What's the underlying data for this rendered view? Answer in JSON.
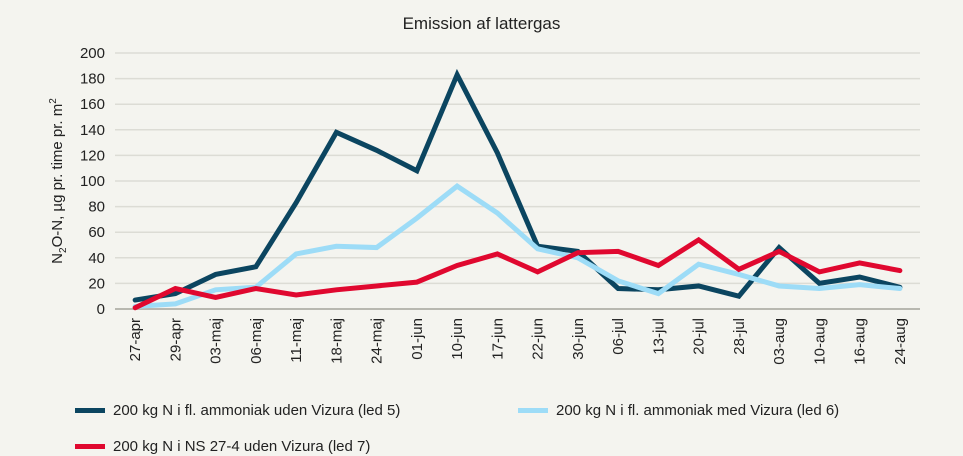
{
  "chart_data": {
    "type": "line",
    "title": "Emission af lattergas",
    "ylabel": "N2O-N, µg pr. time pr. m2",
    "ylabel_parts": {
      "a": "N",
      "sub": "2",
      "b": "O-N, µg pr. time pr. m",
      "sup": "2"
    },
    "xlabel": "",
    "ylim": [
      0,
      200
    ],
    "yticks": [
      0,
      20,
      40,
      60,
      80,
      100,
      120,
      140,
      160,
      180,
      200
    ],
    "grid": true,
    "legend_position": "bottom",
    "categories": [
      "27-apr",
      "29-apr",
      "03-maj",
      "06-maj",
      "11-maj",
      "18-maj",
      "24-maj",
      "01-jun",
      "10-jun",
      "17-jun",
      "22-jun",
      "30-jun",
      "06-jul",
      "13-jul",
      "20-jul",
      "28-jul",
      "03-aug",
      "10-aug",
      "16-aug",
      "24-aug"
    ],
    "series": [
      {
        "name": "200 kg N i fl. ammoniak uden Vizura (led 5)",
        "color": "#0b4560",
        "values": [
          7,
          12,
          27,
          33,
          83,
          138,
          124,
          108,
          183,
          122,
          49,
          45,
          16,
          15,
          18,
          10,
          48,
          20,
          25,
          17
        ]
      },
      {
        "name": "200 kg N i fl. ammoniak med Vizura (led 6)",
        "color": "#9ddcf7",
        "values": [
          2,
          4,
          15,
          17,
          43,
          49,
          48,
          71,
          96,
          75,
          47,
          40,
          22,
          12,
          35,
          27,
          18,
          16,
          19,
          16
        ]
      },
      {
        "name": "200 kg N i NS 27-4 uden Vizura (led 7)",
        "color": "#e0082f",
        "values": [
          1,
          16,
          9,
          16,
          11,
          15,
          18,
          21,
          34,
          43,
          29,
          44,
          45,
          34,
          54,
          31,
          45,
          29,
          36,
          30
        ]
      }
    ]
  }
}
